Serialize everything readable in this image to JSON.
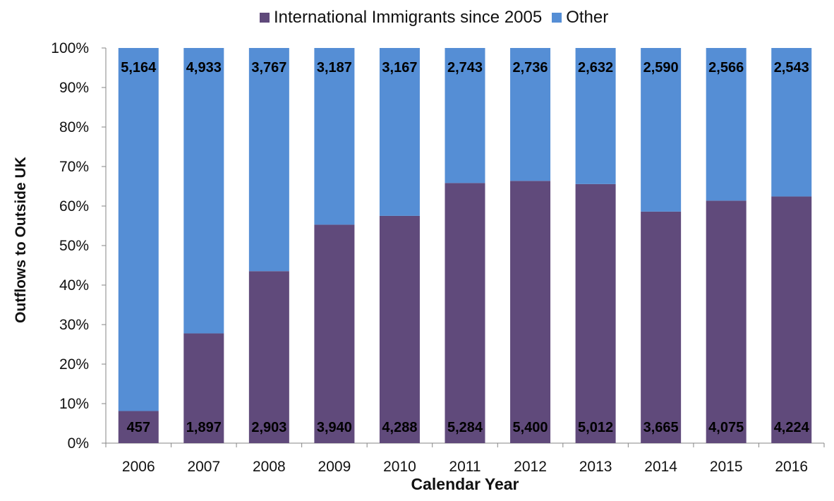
{
  "chart_data": {
    "type": "bar",
    "stacked": "percent",
    "categories": [
      "2006",
      "2007",
      "2008",
      "2009",
      "2010",
      "2011",
      "2012",
      "2013",
      "2014",
      "2015",
      "2016"
    ],
    "series": [
      {
        "name": "International Immigrants since 2005",
        "color": "#604A7B",
        "values": [
          457,
          1897,
          2903,
          3940,
          4288,
          5284,
          5400,
          5012,
          3665,
          4075,
          4224
        ],
        "labels": [
          "457",
          "1,897",
          "2,903",
          "3,940",
          "4,288",
          "5,284",
          "5,400",
          "5,012",
          "3,665",
          "4,075",
          "4,224"
        ]
      },
      {
        "name": "Other",
        "color": "#558ED5",
        "values": [
          5164,
          4933,
          3767,
          3187,
          3167,
          2743,
          2736,
          2632,
          2590,
          2566,
          2543
        ],
        "labels": [
          "5,164",
          "4,933",
          "3,767",
          "3,187",
          "3,167",
          "2,743",
          "2,736",
          "2,632",
          "2,590",
          "2,566",
          "2,543"
        ]
      }
    ],
    "ylim": [
      0,
      100
    ],
    "yticks": [
      "0%",
      "10%",
      "20%",
      "30%",
      "40%",
      "50%",
      "60%",
      "70%",
      "80%",
      "90%",
      "100%"
    ],
    "xlabel": "Calendar Year",
    "ylabel": "Outflows to Outside UK",
    "legend": "top",
    "grid": false
  }
}
